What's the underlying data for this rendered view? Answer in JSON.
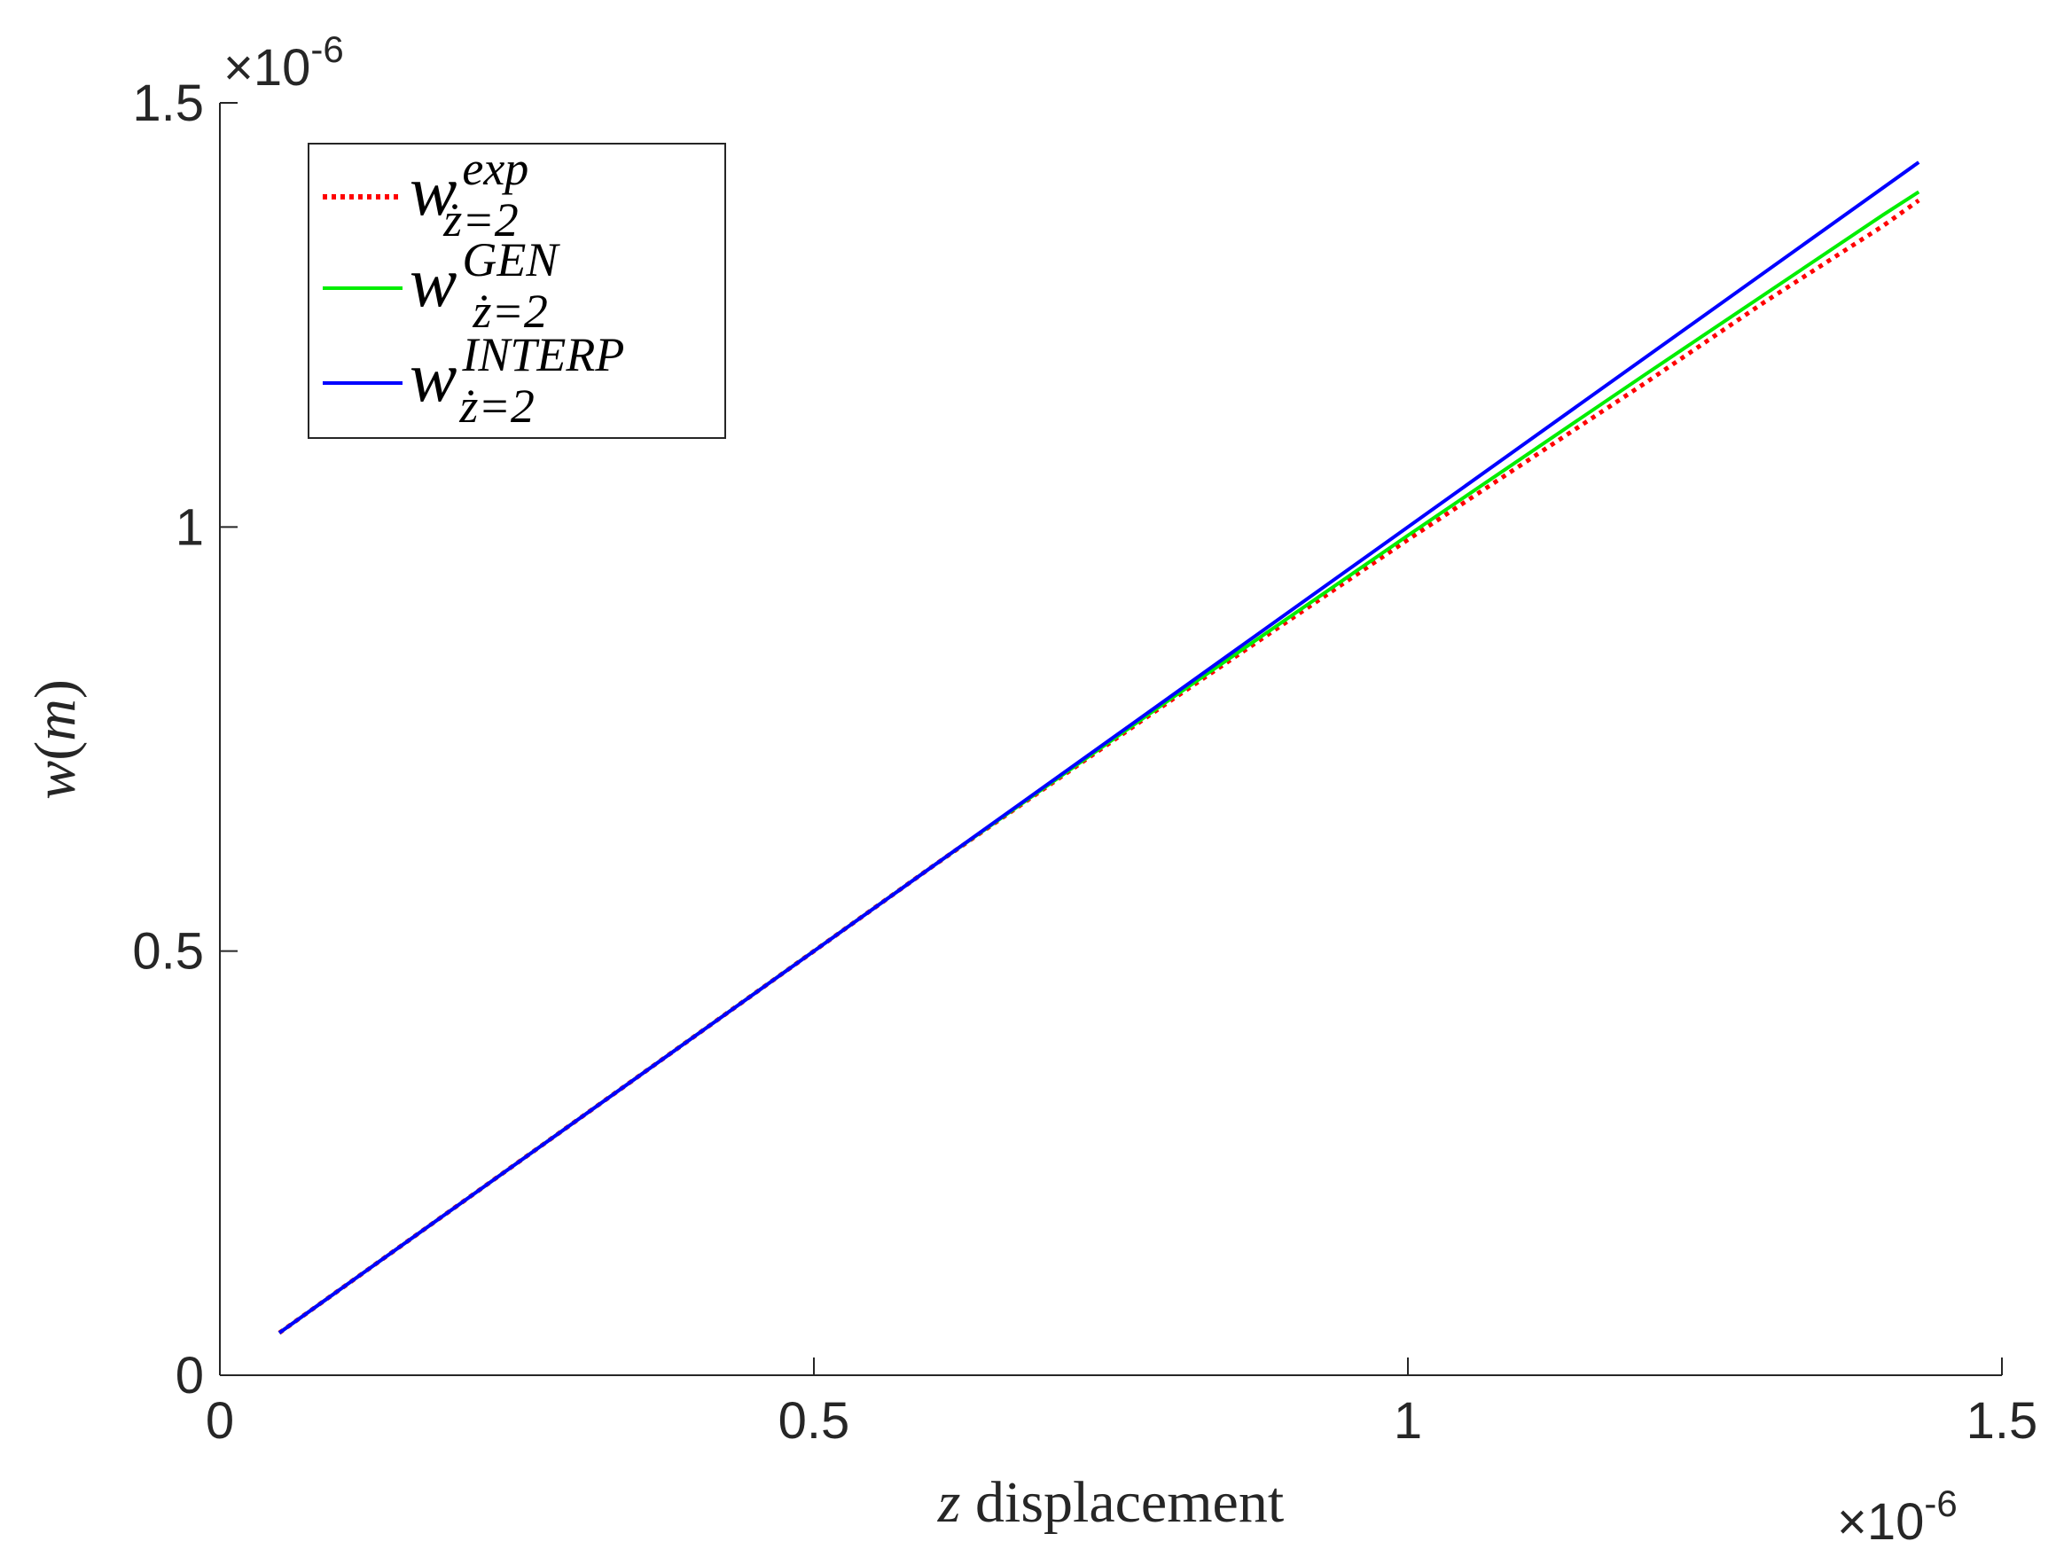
{
  "chart_data": {
    "type": "line",
    "title": "",
    "xlabel": {
      "var": "z",
      "text": "displacement"
    },
    "ylabel": {
      "fn": "w",
      "unit": "m"
    },
    "x_exponent": "×10",
    "x_exponent_power": "-6",
    "y_exponent": "×10",
    "y_exponent_power": "-6",
    "xlim": [
      0,
      1.5
    ],
    "ylim": [
      0,
      1.5
    ],
    "x_ticks": [
      0,
      0.5,
      1,
      1.5
    ],
    "x_tick_labels": [
      "0",
      "0.5",
      "1",
      "1.5"
    ],
    "y_ticks": [
      0,
      0.5,
      1,
      1.5
    ],
    "y_tick_labels": [
      "0",
      "0.5",
      "1",
      "1.5"
    ],
    "grid": false,
    "legend_position": "top-left",
    "series": [
      {
        "name": "w exp ż=2",
        "label_base": "w",
        "label_sup": "exp",
        "label_sub": "ż=2",
        "color": "#ff0000",
        "style": "dotted",
        "x": [
          0.05,
          0.2,
          0.4,
          0.6,
          0.8,
          1.0,
          1.2,
          1.3,
          1.4,
          1.43
        ],
        "y": [
          0.05,
          0.2,
          0.4,
          0.6,
          0.795,
          0.985,
          1.17,
          1.265,
          1.355,
          1.385
        ]
      },
      {
        "name": "w GEN ż=2",
        "label_base": "w",
        "label_sup": "GEN",
        "label_sub": "ż=2",
        "color": "#00ee00",
        "style": "solid",
        "x": [
          0.05,
          0.2,
          0.4,
          0.6,
          0.8,
          1.0,
          1.2,
          1.4,
          1.43
        ],
        "y": [
          0.05,
          0.2,
          0.4,
          0.6,
          0.797,
          0.99,
          1.18,
          1.368,
          1.395
        ]
      },
      {
        "name": "w INTERP ż=2",
        "label_base": "w",
        "label_sup": "INTERP",
        "label_sub": "ż=2",
        "color": "#0000ff",
        "style": "solid",
        "x": [
          0.05,
          1.43
        ],
        "y": [
          0.05,
          1.43
        ]
      }
    ]
  }
}
